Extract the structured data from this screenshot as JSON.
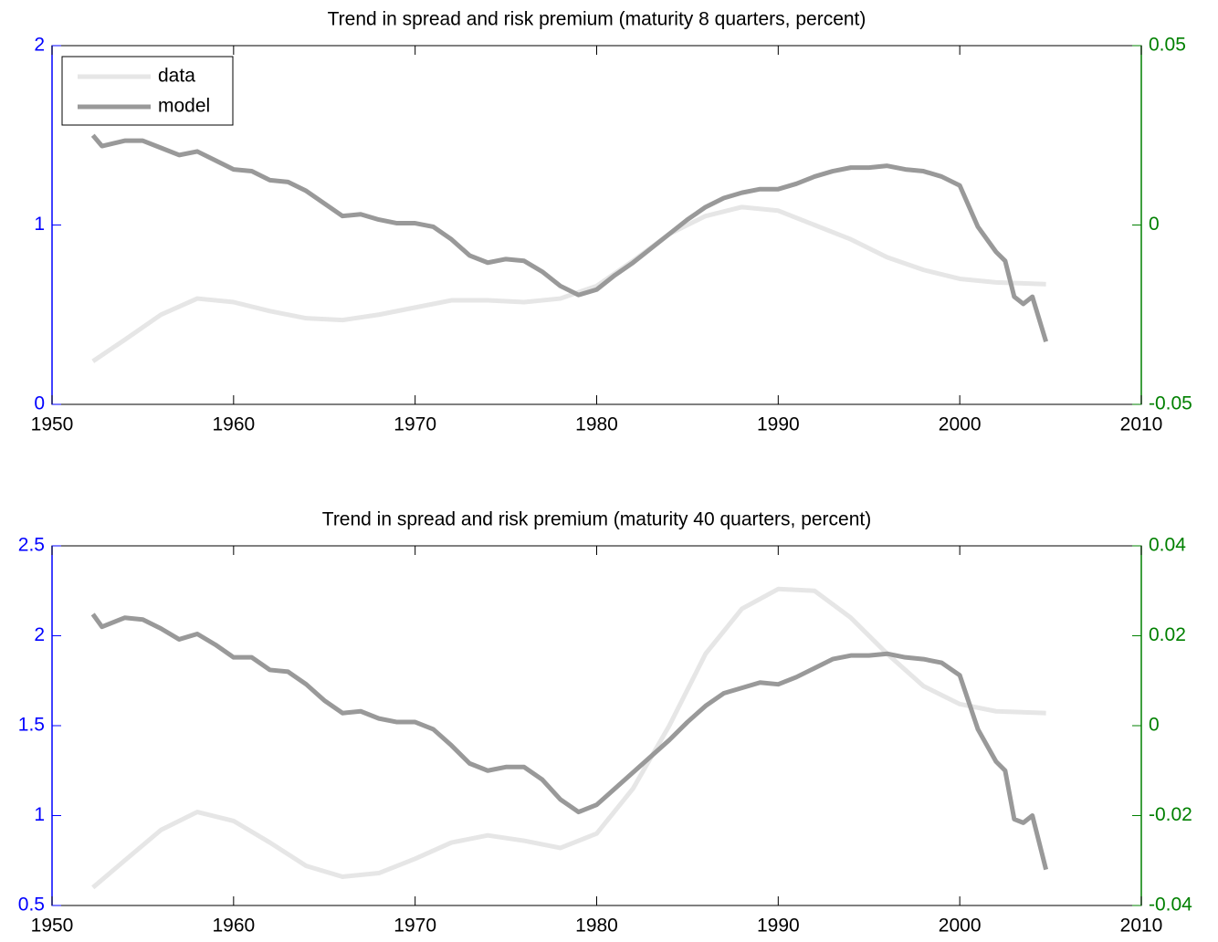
{
  "chart_data": [
    {
      "type": "line",
      "title": "Trend in spread and risk premium (maturity 8 quarters, percent)",
      "xlim": [
        1950,
        2010
      ],
      "xticks": [
        1950,
        1960,
        1970,
        1980,
        1990,
        2000,
        2010
      ],
      "ylim": [
        0,
        2
      ],
      "yticks": [
        0,
        1,
        2
      ],
      "y_color": "#0000ff",
      "y2lim": [
        -0.05,
        0.05
      ],
      "y2ticks": [
        -0.05,
        0,
        0.05
      ],
      "y2_color": "#008000",
      "legend": "upper left",
      "series": [
        {
          "name": "data",
          "color": "#e6e6e6",
          "x": [
            1952.25,
            1954,
            1956,
            1958,
            1960,
            1962,
            1964,
            1966,
            1968,
            1970,
            1972,
            1974,
            1976,
            1978,
            1980,
            1982,
            1984,
            1986,
            1988,
            1990,
            1992,
            1994,
            1996,
            1998,
            2000,
            2002,
            2004.75
          ],
          "values": [
            0.24,
            0.36,
            0.5,
            0.59,
            0.57,
            0.52,
            0.48,
            0.47,
            0.5,
            0.54,
            0.58,
            0.58,
            0.57,
            0.59,
            0.66,
            0.8,
            0.95,
            1.05,
            1.1,
            1.08,
            1.0,
            0.92,
            0.82,
            0.75,
            0.7,
            0.68,
            0.67
          ]
        },
        {
          "name": "model",
          "color": "#999999",
          "axis": "y2",
          "x": [
            1952.25,
            1952.75,
            1954,
            1955,
            1956,
            1957,
            1958,
            1959,
            1960,
            1961,
            1962,
            1963,
            1964,
            1965,
            1966,
            1967,
            1968,
            1969,
            1970,
            1971,
            1972,
            1973,
            1974,
            1975,
            1976,
            1977,
            1978,
            1979,
            1980,
            1981,
            1982,
            1983,
            1984,
            1985,
            1986,
            1987,
            1988,
            1989,
            1990,
            1991,
            1992,
            1993,
            1994,
            1995,
            1996,
            1997,
            1998,
            1999,
            2000,
            2001,
            2002,
            2002.5,
            2003,
            2003.5,
            2004,
            2004.75
          ],
          "values": [
            0.025,
            0.022,
            0.0235,
            0.0235,
            0.0215,
            0.0195,
            0.0205,
            0.018,
            0.0155,
            0.015,
            0.0125,
            0.012,
            0.0095,
            0.006,
            0.0025,
            0.003,
            0.0015,
            0.0005,
            0.0005,
            -0.0005,
            -0.004,
            -0.0085,
            -0.0105,
            -0.0095,
            -0.01,
            -0.013,
            -0.017,
            -0.0195,
            -0.018,
            -0.014,
            -0.0105,
            -0.0065,
            -0.0025,
            0.0015,
            0.005,
            0.0075,
            0.009,
            0.01,
            0.01,
            0.0115,
            0.0135,
            0.015,
            0.016,
            0.016,
            0.0165,
            0.0155,
            0.015,
            0.0135,
            0.011,
            -0.0005,
            -0.0075,
            -0.01,
            -0.02,
            -0.022,
            -0.02,
            -0.0325
          ]
        }
      ]
    },
    {
      "type": "line",
      "title": "Trend in spread and risk premium (maturity 40 quarters, percent)",
      "xlim": [
        1950,
        2010
      ],
      "xticks": [
        1950,
        1960,
        1970,
        1980,
        1990,
        2000,
        2010
      ],
      "ylim": [
        0.5,
        2.5
      ],
      "yticks": [
        0.5,
        1,
        1.5,
        2,
        2.5
      ],
      "y_color": "#0000ff",
      "y2lim": [
        -0.04,
        0.04
      ],
      "y2ticks": [
        -0.04,
        -0.02,
        0,
        0.02,
        0.04
      ],
      "y2_color": "#008000",
      "series": [
        {
          "name": "data",
          "color": "#e6e6e6",
          "x": [
            1952.25,
            1954,
            1956,
            1958,
            1960,
            1962,
            1964,
            1966,
            1968,
            1970,
            1972,
            1974,
            1976,
            1978,
            1980,
            1982,
            1984,
            1986,
            1988,
            1990,
            1992,
            1994,
            1996,
            1998,
            2000,
            2002,
            2004.75
          ],
          "values": [
            0.6,
            0.75,
            0.92,
            1.02,
            0.97,
            0.85,
            0.72,
            0.66,
            0.68,
            0.76,
            0.85,
            0.89,
            0.86,
            0.82,
            0.9,
            1.15,
            1.5,
            1.9,
            2.15,
            2.26,
            2.25,
            2.1,
            1.9,
            1.72,
            1.62,
            1.58,
            1.57
          ]
        },
        {
          "name": "model",
          "color": "#999999",
          "axis": "y2",
          "x": [
            1952.25,
            1952.75,
            1954,
            1955,
            1956,
            1957,
            1958,
            1959,
            1960,
            1961,
            1962,
            1963,
            1964,
            1965,
            1966,
            1967,
            1968,
            1969,
            1970,
            1971,
            1972,
            1973,
            1974,
            1975,
            1976,
            1977,
            1978,
            1979,
            1980,
            1981,
            1982,
            1983,
            1984,
            1985,
            1986,
            1987,
            1988,
            1989,
            1990,
            1991,
            1992,
            1993,
            1994,
            1995,
            1996,
            1997,
            1998,
            1999,
            2000,
            2001,
            2002,
            2002.5,
            2003,
            2003.5,
            2004,
            2004.75
          ],
          "values": [
            0.0248,
            0.022,
            0.024,
            0.0236,
            0.0216,
            0.0192,
            0.0204,
            0.018,
            0.0152,
            0.0152,
            0.0124,
            0.012,
            0.0092,
            0.0056,
            0.0028,
            0.0032,
            0.0016,
            0.0008,
            0.0008,
            -0.0008,
            -0.0044,
            -0.0084,
            -0.01,
            -0.0092,
            -0.0092,
            -0.012,
            -0.0164,
            -0.0192,
            -0.0176,
            -0.014,
            -0.0104,
            -0.0068,
            -0.0032,
            0.0008,
            0.0044,
            0.0072,
            0.0084,
            0.0096,
            0.0092,
            0.0108,
            0.0128,
            0.0148,
            0.0156,
            0.0156,
            0.016,
            0.0152,
            0.0148,
            0.014,
            0.0112,
            -0.0008,
            -0.008,
            -0.01,
            -0.0208,
            -0.0216,
            -0.02,
            -0.032
          ]
        }
      ]
    }
  ]
}
